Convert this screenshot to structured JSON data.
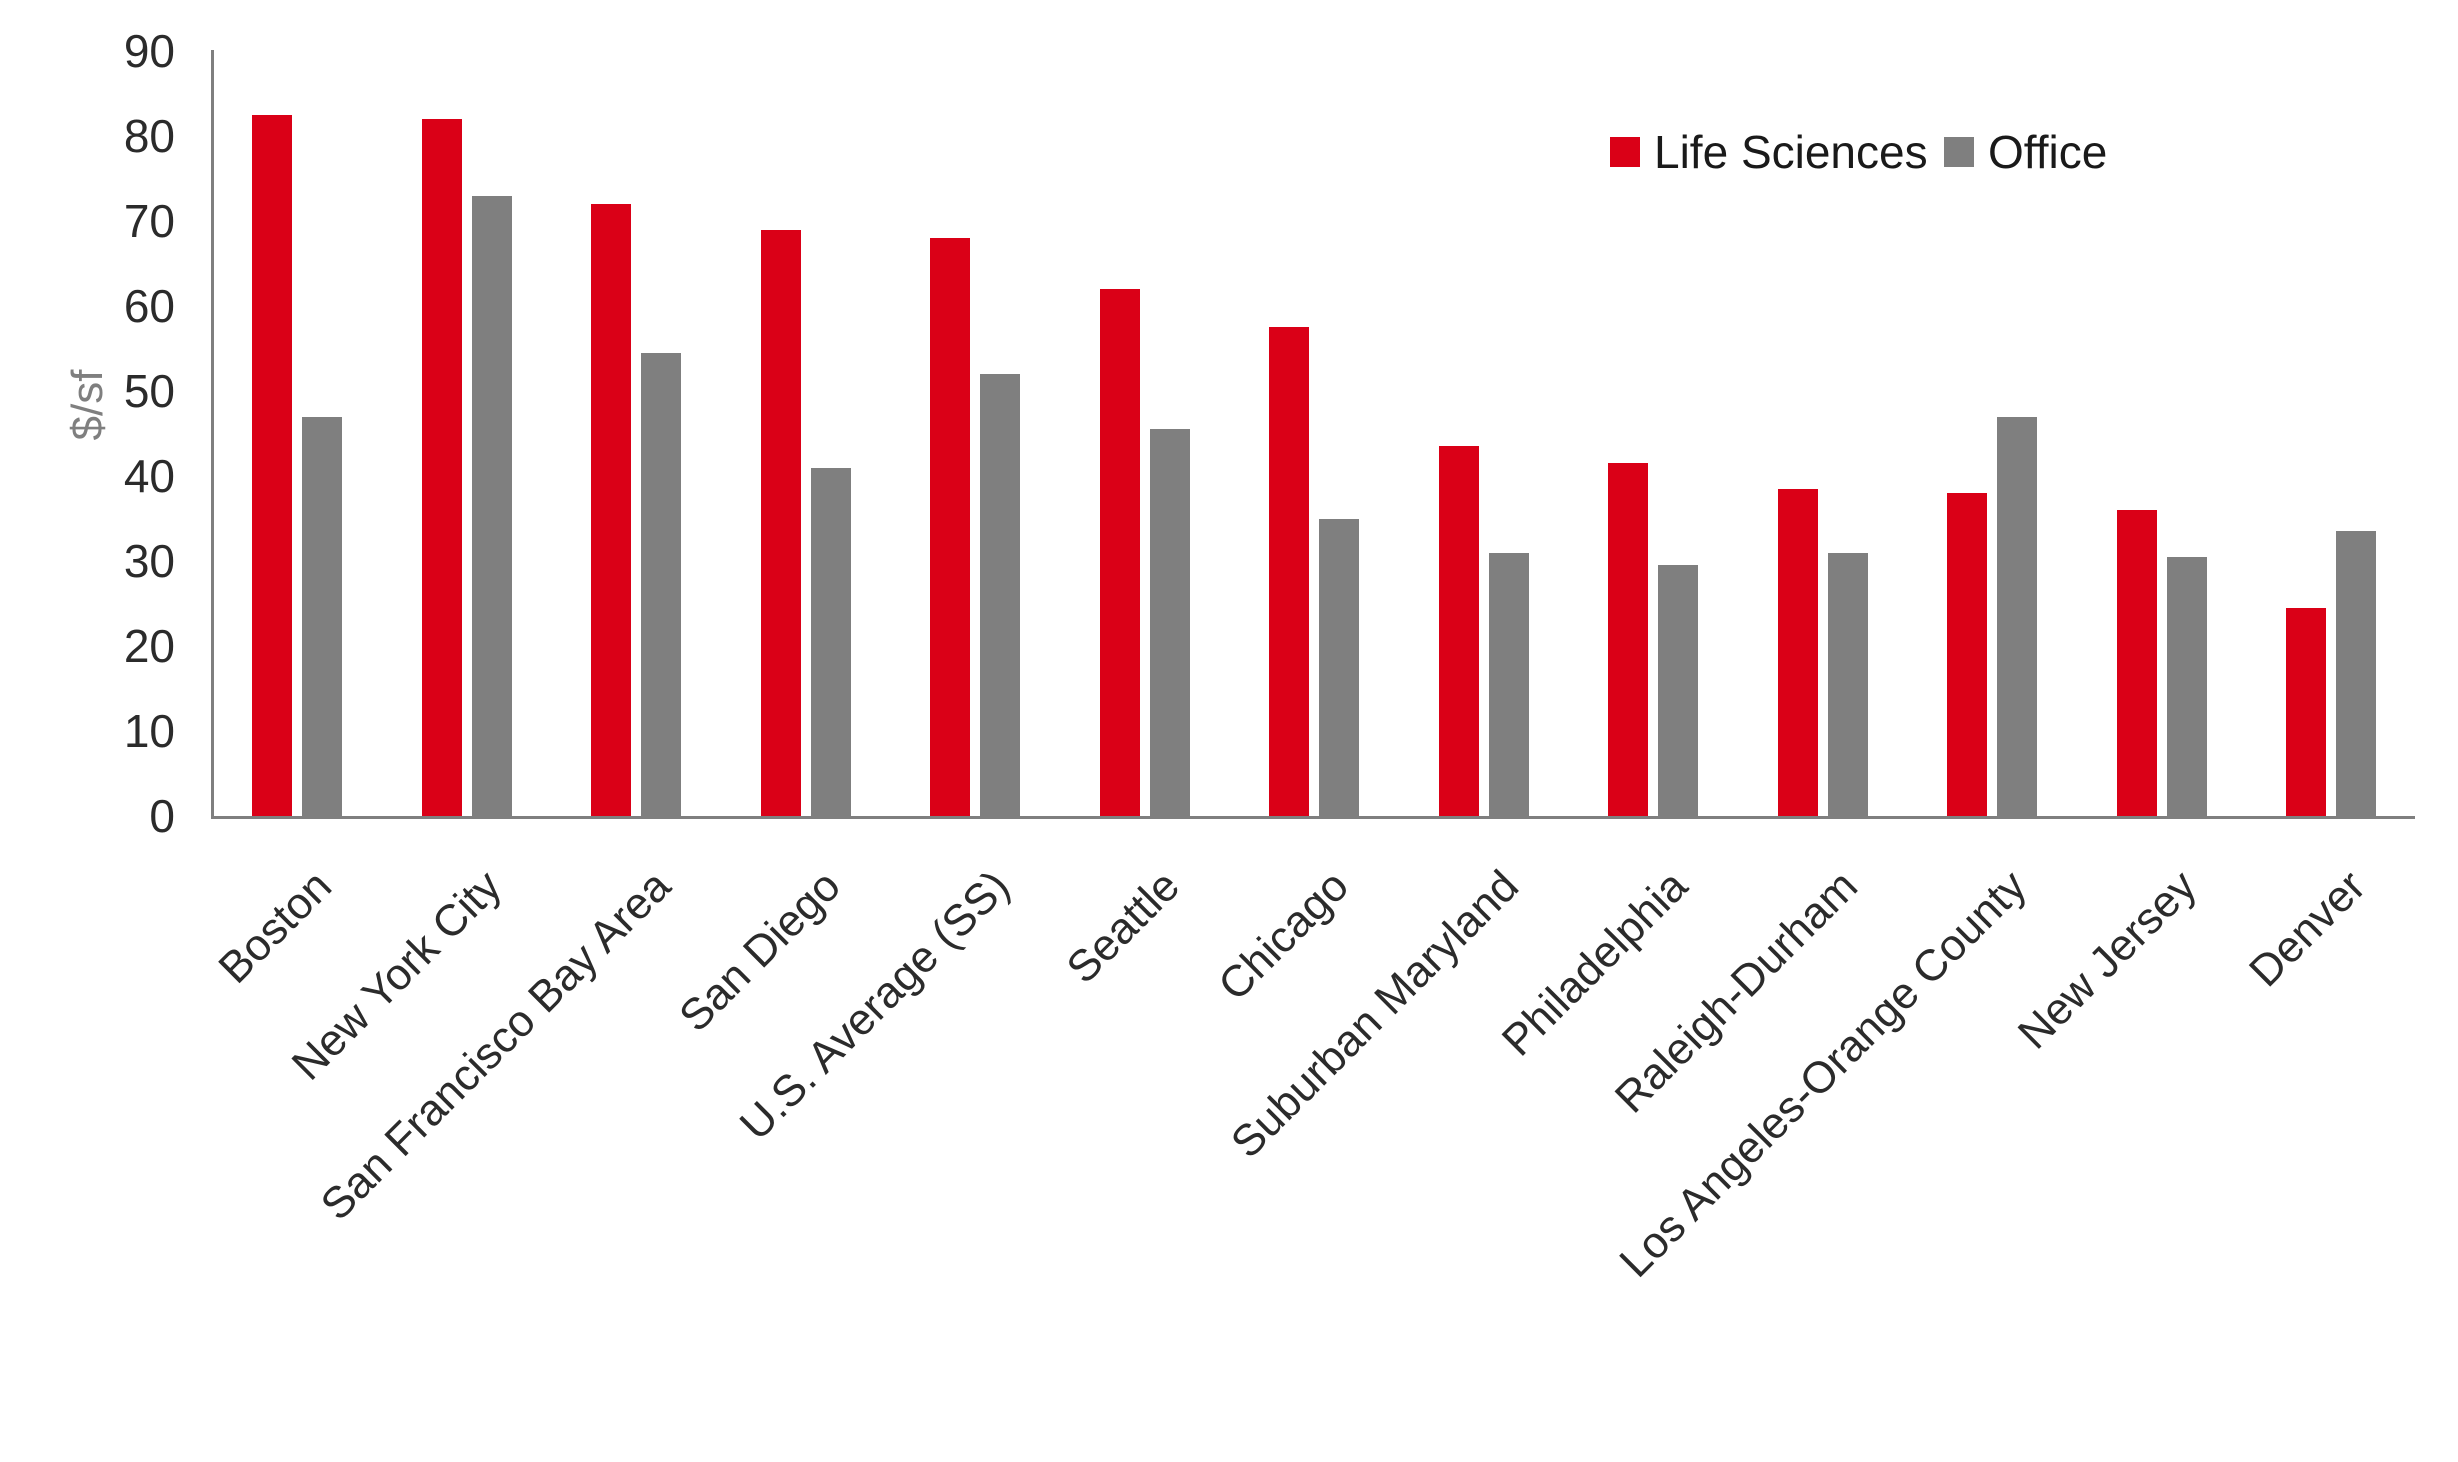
{
  "chart_data": {
    "type": "bar",
    "title": "",
    "xlabel": "",
    "ylabel": "$/sf",
    "ylim": [
      0,
      90
    ],
    "ytick_step": 10,
    "grid": false,
    "legend_position": "top-right",
    "categories": [
      "Boston",
      "New York City",
      "San Francisco Bay Area",
      "San Diego",
      "U.S. Average (SS)",
      "Seattle",
      "Chicago",
      "Suburban Maryland",
      "Philadelphia",
      "Raleigh-Durham",
      "Los Angeles-Orange County",
      "New Jersey",
      "Denver"
    ],
    "series": [
      {
        "name": "Life Sciences",
        "color": "#da0017",
        "values": [
          82.5,
          82,
          72,
          69,
          68,
          62,
          57.5,
          43.5,
          41.5,
          38.5,
          38,
          36,
          24.5
        ]
      },
      {
        "name": "Office",
        "color": "#7f7f7f",
        "values": [
          47,
          73,
          54.5,
          41,
          52,
          45.5,
          35,
          31,
          29.5,
          31,
          47,
          30.5,
          33.5
        ]
      }
    ]
  },
  "colors": {
    "axis_line": "#7f7f7f",
    "tick_text": "#2b2b2b",
    "y_title_text": "#7f7f7f",
    "legend_text": "#1a1a1a",
    "background": "#ffffff"
  }
}
